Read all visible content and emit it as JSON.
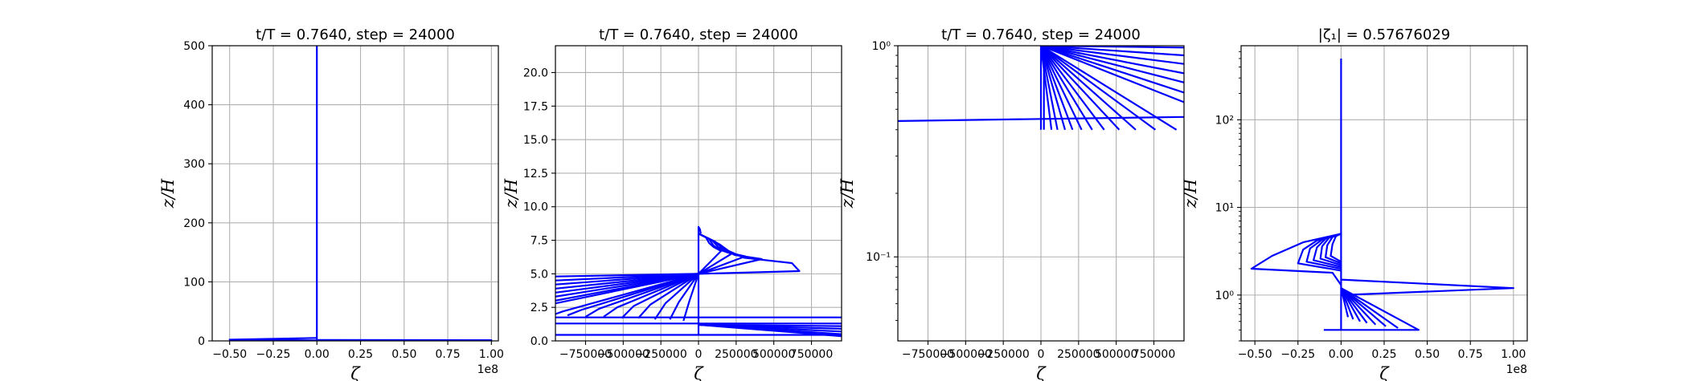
{
  "chart_data": [
    {
      "type": "line",
      "title": "t/T = 0.7640, step = 24000",
      "xlabel": "ζ",
      "ylabel": "z/H",
      "xlim": [
        -60000000.0,
        104000000.0
      ],
      "ylim": [
        0,
        500
      ],
      "yscale": "linear",
      "x_ticks": [
        -50000000.0,
        -25000000.0,
        0,
        25000000.0,
        50000000.0,
        75000000.0,
        100000000.0
      ],
      "x_tick_labels": [
        "−0.50",
        "−0.25",
        "0.00",
        "0.25",
        "0.50",
        "0.75",
        "1.00"
      ],
      "y_ticks": [
        0,
        100,
        200,
        300,
        400,
        500
      ],
      "y_tick_labels": [
        "0",
        "100",
        "200",
        "300",
        "400",
        "500"
      ],
      "offset_text": "1e8",
      "grid": true,
      "series": [
        {
          "x": [
            0,
            0
          ],
          "y": [
            0.4,
            500
          ]
        },
        {
          "x": [
            0,
            -50000000.0,
            0
          ],
          "y": [
            5,
            2,
            1
          ]
        },
        {
          "x": [
            0,
            100000000.0,
            0
          ],
          "y": [
            1.5,
            1.2,
            0.4
          ]
        }
      ]
    },
    {
      "type": "line",
      "title": "t/T = 0.7640, step = 24000",
      "xlabel": "ζ",
      "ylabel": "z/H",
      "xlim": [
        -950000,
        950000
      ],
      "ylim": [
        0,
        22
      ],
      "yscale": "linear",
      "x_ticks": [
        -750000,
        -500000,
        -250000,
        0,
        250000,
        500000,
        750000
      ],
      "x_tick_labels": [
        "−750000",
        "−500000",
        "−250000",
        "0",
        "250000",
        "500000",
        "750000"
      ],
      "y_ticks": [
        0,
        2.5,
        5,
        7.5,
        10,
        12.5,
        15,
        17.5,
        20
      ],
      "y_tick_labels": [
        "0.0",
        "2.5",
        "5.0",
        "7.5",
        "10.0",
        "12.5",
        "15.0",
        "17.5",
        "20.0"
      ],
      "grid": true,
      "series": [
        {
          "x": [
            0,
            0,
            10000,
            15000
          ],
          "y": [
            0.4,
            8.5,
            8.3,
            8.0
          ]
        },
        {
          "x": [
            0,
            140000,
            200000,
            300000,
            620000,
            670000,
            0
          ],
          "y": [
            8.0,
            7.2,
            6.7,
            6.2,
            5.8,
            5.2,
            5.0
          ]
        },
        {
          "x": [
            0,
            110000,
            160000,
            240000,
            420000,
            0
          ],
          "y": [
            8.0,
            7.4,
            6.9,
            6.4,
            6.1,
            5.0
          ]
        },
        {
          "x": [
            0,
            90000,
            130000,
            190000,
            310000,
            0
          ],
          "y": [
            8.0,
            7.5,
            7.0,
            6.6,
            6.3,
            5.0
          ]
        },
        {
          "x": [
            0,
            70000,
            100000,
            140000,
            220000,
            0
          ],
          "y": [
            8.0,
            7.6,
            7.1,
            6.8,
            6.5,
            5.0
          ]
        },
        {
          "x": [
            0,
            50000,
            70000,
            100000,
            150000,
            0
          ],
          "y": [
            8.0,
            7.7,
            7.3,
            7.0,
            6.7,
            5.0
          ]
        },
        {
          "x": [
            0,
            -950000
          ],
          "y": [
            5.0,
            4.8
          ]
        },
        {
          "x": [
            0,
            -950000
          ],
          "y": [
            5.0,
            4.5
          ]
        },
        {
          "x": [
            0,
            -950000
          ],
          "y": [
            5.0,
            4.2
          ]
        },
        {
          "x": [
            0,
            -950000
          ],
          "y": [
            5.0,
            3.9
          ]
        },
        {
          "x": [
            0,
            -950000
          ],
          "y": [
            5.0,
            3.6
          ]
        },
        {
          "x": [
            0,
            -950000
          ],
          "y": [
            5.0,
            3.3
          ]
        },
        {
          "x": [
            0,
            -950000
          ],
          "y": [
            5.0,
            3.0
          ]
        },
        {
          "x": [
            0,
            -950000
          ],
          "y": [
            5.0,
            2.8
          ]
        },
        {
          "x": [
            0,
            -900000,
            -950000
          ],
          "y": [
            5.0,
            2.2,
            2.0
          ]
        },
        {
          "x": [
            0,
            -780000,
            -870000
          ],
          "y": [
            5.0,
            2.3,
            1.9
          ]
        },
        {
          "x": [
            0,
            -660000,
            -750000
          ],
          "y": [
            5.0,
            2.4,
            1.8
          ]
        },
        {
          "x": [
            0,
            -540000,
            -630000
          ],
          "y": [
            5.0,
            2.5,
            1.8
          ]
        },
        {
          "x": [
            0,
            -430000,
            -510000
          ],
          "y": [
            5.0,
            2.6,
            1.7
          ]
        },
        {
          "x": [
            0,
            -320000,
            -400000
          ],
          "y": [
            5.0,
            2.7,
            1.7
          ]
        },
        {
          "x": [
            0,
            -220000,
            -290000
          ],
          "y": [
            5.0,
            2.8,
            1.6
          ]
        },
        {
          "x": [
            0,
            -130000,
            -190000
          ],
          "y": [
            5.0,
            2.9,
            1.6
          ]
        },
        {
          "x": [
            0,
            -60000,
            -100000
          ],
          "y": [
            5.0,
            3.0,
            1.5
          ]
        },
        {
          "x": [
            -950000,
            950000
          ],
          "y": [
            1.75,
            1.75
          ]
        },
        {
          "x": [
            -950000,
            950000
          ],
          "y": [
            1.3,
            1.3
          ]
        },
        {
          "x": [
            0,
            950000
          ],
          "y": [
            1.2,
            1.1
          ]
        },
        {
          "x": [
            0,
            950000
          ],
          "y": [
            1.2,
            0.9
          ]
        },
        {
          "x": [
            0,
            950000
          ],
          "y": [
            1.2,
            0.7
          ]
        },
        {
          "x": [
            0,
            950000
          ],
          "y": [
            1.2,
            0.5
          ]
        },
        {
          "x": [
            0,
            950000
          ],
          "y": [
            1.2,
            0.35
          ]
        },
        {
          "x": [
            -950000,
            950000
          ],
          "y": [
            0.45,
            0.45
          ]
        }
      ]
    },
    {
      "type": "line",
      "title": "t/T = 0.7640, step = 24000",
      "xlabel": "ζ",
      "ylabel": "z/H",
      "xlim": [
        -950000,
        950000
      ],
      "ylim": [
        0.04,
        1
      ],
      "yscale": "log",
      "x_ticks": [
        -750000,
        -500000,
        -250000,
        0,
        250000,
        500000,
        750000
      ],
      "x_tick_labels": [
        "−750000",
        "−500000",
        "−250000",
        "0",
        "250000",
        "500000",
        "750000"
      ],
      "y_ticks": [
        0.1,
        1
      ],
      "y_tick_labels": [
        "10⁻¹",
        "10⁰"
      ],
      "grid": true,
      "series": [
        {
          "x": [
            -950000,
            0,
            950000
          ],
          "y": [
            0.44,
            0.45,
            0.46
          ]
        },
        {
          "x": [
            0,
            0
          ],
          "y": [
            0.4,
            1
          ]
        },
        {
          "x": [
            20000,
            20000
          ],
          "y": [
            0.4,
            1
          ]
        },
        {
          "x": [
            0,
            950000
          ],
          "y": [
            1.0,
            0.98
          ]
        },
        {
          "x": [
            0,
            950000
          ],
          "y": [
            1.0,
            0.9
          ]
        },
        {
          "x": [
            0,
            950000
          ],
          "y": [
            1.0,
            0.82
          ]
        },
        {
          "x": [
            0,
            950000
          ],
          "y": [
            1.0,
            0.74
          ]
        },
        {
          "x": [
            0,
            950000
          ],
          "y": [
            1.0,
            0.67
          ]
        },
        {
          "x": [
            0,
            950000
          ],
          "y": [
            1.0,
            0.6
          ]
        },
        {
          "x": [
            0,
            950000
          ],
          "y": [
            1.0,
            0.54
          ]
        },
        {
          "x": [
            0,
            900000
          ],
          "y": [
            1.0,
            0.4
          ]
        },
        {
          "x": [
            0,
            760000
          ],
          "y": [
            1.0,
            0.4
          ]
        },
        {
          "x": [
            0,
            630000
          ],
          "y": [
            1.0,
            0.4
          ]
        },
        {
          "x": [
            0,
            520000
          ],
          "y": [
            1.0,
            0.4
          ]
        },
        {
          "x": [
            0,
            420000
          ],
          "y": [
            1.0,
            0.4
          ]
        },
        {
          "x": [
            0,
            340000
          ],
          "y": [
            1.0,
            0.4
          ]
        },
        {
          "x": [
            0,
            270000
          ],
          "y": [
            1.0,
            0.4
          ]
        },
        {
          "x": [
            0,
            210000
          ],
          "y": [
            1.0,
            0.4
          ]
        },
        {
          "x": [
            0,
            160000
          ],
          "y": [
            1.0,
            0.4
          ]
        },
        {
          "x": [
            0,
            110000
          ],
          "y": [
            1.0,
            0.4
          ]
        },
        {
          "x": [
            0,
            70000
          ],
          "y": [
            1.0,
            0.4
          ]
        }
      ]
    },
    {
      "type": "line",
      "title": "|ζ₁| = 0.57676029",
      "xlabel": "ζ",
      "ylabel": "z/H",
      "xlim": [
        -58000000.0,
        108000000.0
      ],
      "ylim": [
        0.3,
        700
      ],
      "yscale": "log",
      "x_ticks": [
        -50000000.0,
        -25000000.0,
        0,
        25000000.0,
        50000000.0,
        75000000.0,
        100000000.0
      ],
      "x_tick_labels": [
        "−0.50",
        "−0.25",
        "0.00",
        "0.25",
        "0.50",
        "0.75",
        "1.00"
      ],
      "y_ticks": [
        1,
        10,
        100
      ],
      "y_tick_labels": [
        "10⁰",
        "10¹",
        "10²"
      ],
      "offset_text": "1e8",
      "grid": true,
      "series": [
        {
          "x": [
            0,
            0
          ],
          "y": [
            0.4,
            500
          ]
        },
        {
          "x": [
            0,
            -22000000.0,
            -40000000.0,
            -52000000.0,
            -5000000.0,
            0
          ],
          "y": [
            5.0,
            4.0,
            2.8,
            2.0,
            1.8,
            1.3
          ]
        },
        {
          "x": [
            0,
            -14000000.0,
            -22000000.0,
            -25000000.0,
            0
          ],
          "y": [
            5.0,
            4.2,
            3.3,
            2.3,
            1.9
          ]
        },
        {
          "x": [
            0,
            -11000000.0,
            -18000000.0,
            -20000000.0,
            0
          ],
          "y": [
            5.0,
            4.3,
            3.4,
            2.4,
            2.0
          ]
        },
        {
          "x": [
            0,
            -9000000.0,
            -14000000.0,
            -16000000.0,
            0
          ],
          "y": [
            5.0,
            4.4,
            3.5,
            2.5,
            2.1
          ]
        },
        {
          "x": [
            0,
            -7000000.0,
            -11000000.0,
            -12000000.0,
            0
          ],
          "y": [
            5.0,
            4.5,
            3.6,
            2.6,
            2.2
          ]
        },
        {
          "x": [
            0,
            -5000000.0,
            -8000000.0,
            -9000000.0,
            0
          ],
          "y": [
            5.0,
            4.6,
            3.7,
            2.7,
            2.3
          ]
        },
        {
          "x": [
            0,
            -3000000.0,
            -5000000.0,
            -6000000.0,
            0
          ],
          "y": [
            5.0,
            4.7,
            3.8,
            2.8,
            2.4
          ]
        },
        {
          "x": [
            0,
            100000000.0,
            0
          ],
          "y": [
            1.5,
            1.2,
            1.0
          ]
        },
        {
          "x": [
            0,
            45000000.0,
            -10000000.0
          ],
          "y": [
            1.2,
            0.4,
            0.4
          ]
        },
        {
          "x": [
            0,
            33000000.0
          ],
          "y": [
            1.2,
            0.42
          ]
        },
        {
          "x": [
            0,
            26000000.0
          ],
          "y": [
            1.2,
            0.44
          ]
        },
        {
          "x": [
            0,
            20000000.0
          ],
          "y": [
            1.2,
            0.46
          ]
        },
        {
          "x": [
            0,
            15000000.0
          ],
          "y": [
            1.2,
            0.48
          ]
        },
        {
          "x": [
            0,
            11000000.0
          ],
          "y": [
            1.2,
            0.5
          ]
        },
        {
          "x": [
            0,
            7000000.0
          ],
          "y": [
            1.2,
            0.53
          ]
        },
        {
          "x": [
            0,
            4000000.0
          ],
          "y": [
            1.2,
            0.56
          ]
        }
      ]
    }
  ]
}
